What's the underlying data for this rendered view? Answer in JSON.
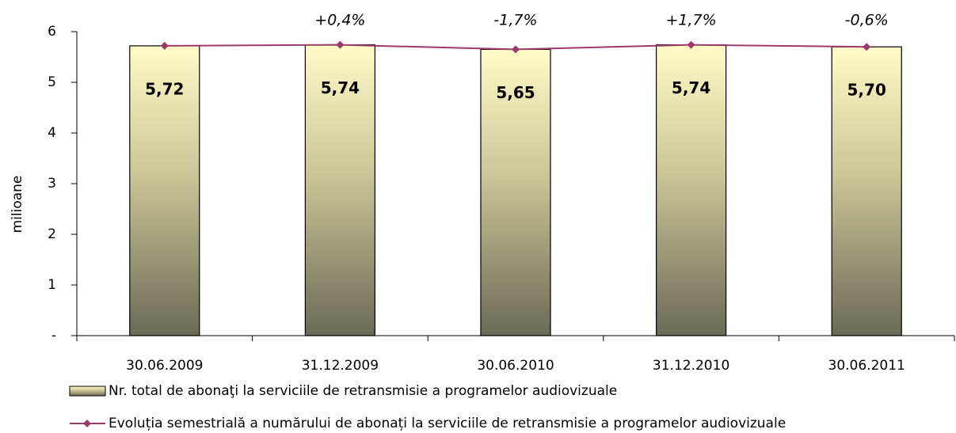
{
  "chart_data": {
    "type": "bar_line",
    "y_label": "milioane",
    "categories": [
      "30.06.2009",
      "31.12.2009",
      "30.06.2010",
      "31.12.2010",
      "30.06.2011"
    ],
    "series": [
      {
        "name": "Nr. total de abonaţi la serviciile de retransmisie a programelor audiovizuale",
        "type": "bar",
        "color": "#fffcc8",
        "values": [
          5.72,
          5.74,
          5.65,
          5.74,
          5.7
        ],
        "value_labels": [
          "5,72",
          "5,74",
          "5,65",
          "5,74",
          "5,70"
        ]
      },
      {
        "name": "Evoluția semestrială a numărului de abonați la serviciile de retransmisie a programelor audiovizuale",
        "type": "line",
        "color": "#9b3a6b",
        "values": [
          5.72,
          5.74,
          5.65,
          5.74,
          5.7
        ]
      }
    ],
    "annotations": [
      {
        "category": "31.12.2009",
        "text": "+0,4%"
      },
      {
        "category": "30.06.2010",
        "text": "-1,7%"
      },
      {
        "category": "31.12.2010",
        "text": "+1,7%"
      },
      {
        "category": "30.06.2011",
        "text": "-0,6%"
      }
    ],
    "ylim": [
      0,
      6
    ],
    "yticks": [
      {
        "value": 0,
        "label": "-"
      },
      1,
      2,
      3,
      4,
      5,
      6
    ]
  }
}
